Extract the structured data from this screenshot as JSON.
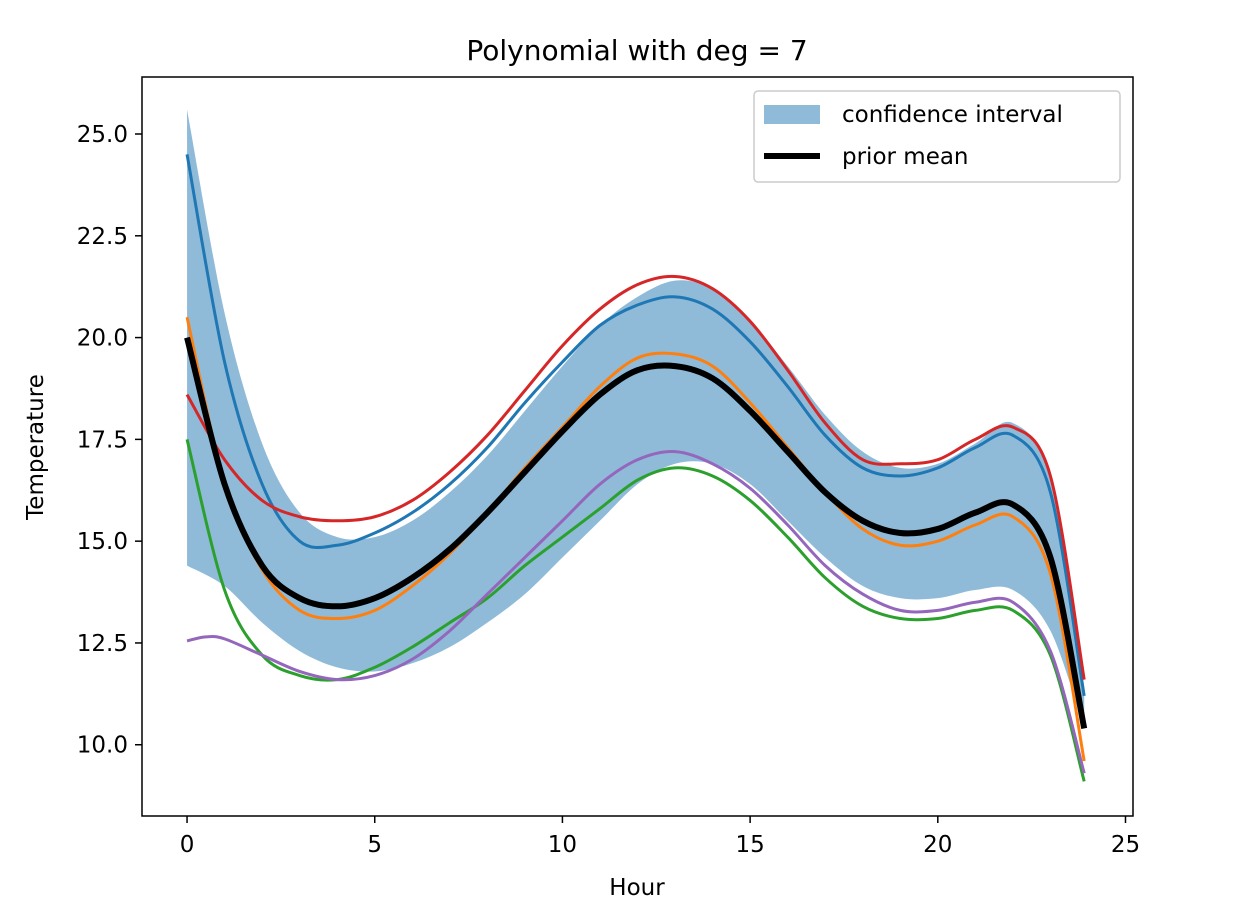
{
  "chart_data": {
    "type": "line",
    "title": "Polynomial with deg = 7",
    "xlabel": "Hour",
    "ylabel": "Temperature",
    "xlim": [
      -1.2,
      25.2
    ],
    "ylim": [
      8.25,
      26.4
    ],
    "xticks": [
      0,
      5,
      10,
      15,
      20,
      25
    ],
    "xtick_labels": [
      "0",
      "5",
      "10",
      "15",
      "20",
      "25"
    ],
    "yticks": [
      10.0,
      12.5,
      15.0,
      17.5,
      20.0,
      22.5,
      25.0
    ],
    "ytick_labels": [
      "10.0",
      "12.5",
      "15.0",
      "17.5",
      "20.0",
      "22.5",
      "25.0"
    ],
    "grid": false,
    "legend": {
      "placement": "top-right",
      "entries": [
        "confidence interval",
        "prior mean"
      ]
    },
    "band": {
      "name": "confidence interval",
      "color": "#8fbbd9",
      "x": [
        0,
        1,
        2,
        3,
        4,
        5,
        6,
        7,
        8,
        9,
        10,
        11,
        12,
        13,
        14,
        15,
        16,
        17,
        18,
        19,
        20,
        21,
        22,
        23,
        23.9
      ],
      "upper": [
        25.6,
        20.6,
        17.4,
        15.7,
        15.1,
        15.1,
        15.5,
        16.2,
        17.1,
        18.2,
        19.3,
        20.3,
        21.0,
        21.4,
        21.2,
        20.4,
        19.3,
        18.1,
        17.2,
        16.8,
        16.9,
        17.4,
        17.9,
        16.5,
        11.3
      ],
      "lower": [
        14.4,
        13.9,
        13.0,
        12.3,
        11.9,
        11.8,
        12.0,
        12.4,
        13.0,
        13.7,
        14.6,
        15.5,
        16.4,
        16.9,
        16.9,
        16.4,
        15.5,
        14.6,
        13.9,
        13.6,
        13.6,
        13.8,
        13.8,
        12.8,
        10.4
      ]
    },
    "prior_mean": {
      "name": "prior mean",
      "color": "#000000",
      "x": [
        0,
        1,
        2,
        3,
        4,
        5,
        6,
        7,
        8,
        9,
        10,
        11,
        12,
        13,
        14,
        15,
        16,
        17,
        18,
        19,
        20,
        21,
        22,
        23,
        23.9
      ],
      "values": [
        20.0,
        16.4,
        14.4,
        13.6,
        13.4,
        13.6,
        14.1,
        14.8,
        15.7,
        16.7,
        17.7,
        18.6,
        19.2,
        19.3,
        19.0,
        18.2,
        17.2,
        16.2,
        15.5,
        15.2,
        15.3,
        15.7,
        15.9,
        14.6,
        10.4
      ]
    },
    "series": [
      {
        "color": "#1f77b4",
        "x": [
          0,
          1,
          2,
          3,
          4,
          5,
          6,
          7,
          8,
          9,
          10,
          11,
          12,
          13,
          14,
          15,
          16,
          17,
          18,
          19,
          20,
          21,
          22,
          23,
          23.9
        ],
        "values": [
          24.5,
          19.4,
          16.4,
          15.0,
          14.9,
          15.2,
          15.7,
          16.4,
          17.3,
          18.4,
          19.4,
          20.3,
          20.8,
          21.0,
          20.7,
          19.9,
          18.8,
          17.6,
          16.8,
          16.6,
          16.8,
          17.3,
          17.6,
          16.2,
          11.2
        ]
      },
      {
        "color": "#ff7f0e",
        "x": [
          0,
          1,
          2,
          3,
          4,
          5,
          6,
          7,
          8,
          9,
          10,
          11,
          12,
          13,
          14,
          15,
          16,
          17,
          18,
          19,
          20,
          21,
          22,
          23,
          23.9
        ],
        "values": [
          20.5,
          16.4,
          14.3,
          13.3,
          13.1,
          13.3,
          13.9,
          14.7,
          15.7,
          16.8,
          17.8,
          18.8,
          19.5,
          19.6,
          19.3,
          18.4,
          17.3,
          16.2,
          15.3,
          14.9,
          15.0,
          15.4,
          15.6,
          14.2,
          9.6
        ]
      },
      {
        "color": "#2ca02c",
        "x": [
          0,
          1,
          2,
          3,
          4,
          5,
          6,
          7,
          8,
          9,
          10,
          11,
          12,
          13,
          14,
          15,
          16,
          17,
          18,
          19,
          20,
          21,
          22,
          23,
          23.9
        ],
        "values": [
          17.5,
          13.8,
          12.2,
          11.7,
          11.6,
          11.9,
          12.4,
          13.0,
          13.6,
          14.4,
          15.1,
          15.8,
          16.5,
          16.8,
          16.6,
          16.0,
          15.1,
          14.1,
          13.4,
          13.1,
          13.1,
          13.3,
          13.3,
          12.2,
          9.1
        ]
      },
      {
        "color": "#d62728",
        "x": [
          0,
          1,
          2,
          3,
          4,
          5,
          6,
          7,
          8,
          9,
          10,
          11,
          12,
          13,
          14,
          15,
          16,
          17,
          18,
          19,
          20,
          21,
          22,
          23,
          23.9
        ],
        "values": [
          18.6,
          17.0,
          16.0,
          15.6,
          15.5,
          15.6,
          16.0,
          16.7,
          17.6,
          18.7,
          19.8,
          20.7,
          21.3,
          21.5,
          21.2,
          20.4,
          19.2,
          17.9,
          17.0,
          16.9,
          17.0,
          17.5,
          17.8,
          16.6,
          11.6
        ]
      },
      {
        "color": "#9467bd",
        "x": [
          0,
          0.5,
          1,
          2,
          3,
          4,
          5,
          6,
          7,
          8,
          9,
          10,
          11,
          12,
          13,
          14,
          15,
          16,
          17,
          18,
          19,
          20,
          21,
          22,
          23,
          23.9
        ],
        "values": [
          12.55,
          12.65,
          12.6,
          12.2,
          11.8,
          11.6,
          11.7,
          12.1,
          12.8,
          13.7,
          14.6,
          15.5,
          16.4,
          17.0,
          17.2,
          16.9,
          16.3,
          15.4,
          14.4,
          13.7,
          13.3,
          13.3,
          13.5,
          13.5,
          12.3,
          9.3
        ]
      }
    ]
  }
}
